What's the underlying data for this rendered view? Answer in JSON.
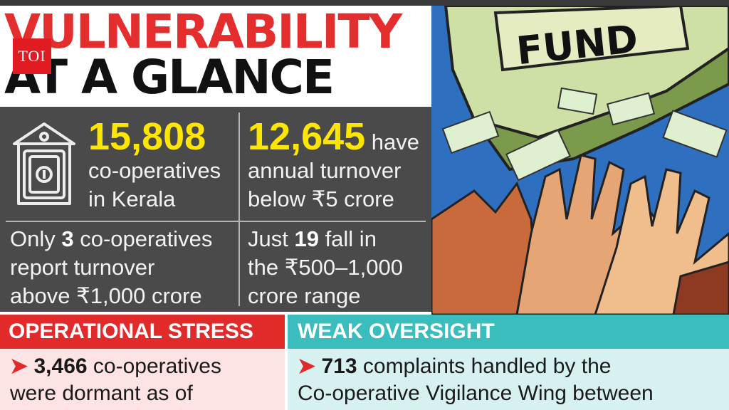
{
  "title": {
    "line1": "VULNERABILITY",
    "line2": "AT A GLANCE",
    "logo": "TOI"
  },
  "stats": {
    "total": {
      "number": "15,808",
      "line1": "co-operatives",
      "line2": "in Kerala"
    },
    "below": {
      "number": "12,645",
      "suffix": "have",
      "line1": "annual turnover",
      "line2": "below ₹5 crore"
    },
    "above": {
      "pre": "Only ",
      "number": "3",
      "post": " co-operatives",
      "line2": "report turnover",
      "line3": "above ₹1,000 crore"
    },
    "range": {
      "pre": "Just ",
      "number": "19",
      "post": " fall in",
      "line2": "the ₹500–1,000",
      "line3": "crore range"
    }
  },
  "illustration": {
    "sign_text": "FUND"
  },
  "sections": {
    "operational": {
      "heading": "OPERATIONAL STRESS",
      "number": "3,466",
      "text1": " co-operatives",
      "text2": "were dormant as of"
    },
    "oversight": {
      "heading": "WEAK OVERSIGHT",
      "number": "713",
      "text1": " complaints handled by the",
      "text2": "Co-operative Vigilance Wing between"
    }
  },
  "colors": {
    "red": "#e12b2b",
    "cyan": "#3bbdbd",
    "yellow": "#ffe600",
    "grey": "#4a4a4a"
  }
}
